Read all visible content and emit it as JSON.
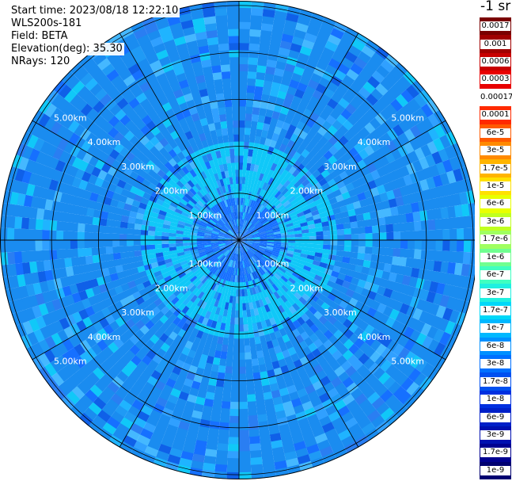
{
  "info": {
    "start_time": "Start time: 2023/08/18 12:22:10",
    "instrument": "WLS200s-181",
    "field": "Field: BETA",
    "elevation": "Elevation(deg): 35.30",
    "nrays": "NRays: 120"
  },
  "colorbar": {
    "title": "-1 sr",
    "labels": [
      "0.0017",
      "0.001",
      "0.0006",
      "0.0003",
      "0.00017",
      "0.0001",
      "6e-5",
      "3e-5",
      "1.7e-5",
      "1e-5",
      "6e-6",
      "3e-6",
      "1.7e-6",
      "1e-6",
      "6e-7",
      "3e-7",
      "1.7e-7",
      "1e-7",
      "6e-8",
      "3e-8",
      "1.7e-8",
      "1e-8",
      "6e-9",
      "3e-9",
      "1.7e-9",
      "1e-9"
    ],
    "colors": [
      "#7a0000",
      "#a00000",
      "#c80000",
      "#e80000",
      "#ffffff",
      "#ff2a00",
      "#ff5a00",
      "#ff8a00",
      "#ffb400",
      "#ffe000",
      "#e8ff00",
      "#c0ff20",
      "#a0ff60",
      "#70ff90",
      "#40ffc0",
      "#20f0e0",
      "#00d8f8",
      "#00b8ff",
      "#0090ff",
      "#0070ff",
      "#0050f0",
      "#0030e0",
      "#0020c8",
      "#0010b0",
      "#000090",
      "#000070"
    ]
  },
  "chart_data": {
    "type": "heatmap",
    "projection": "polar (PPI scan)",
    "field": "BETA",
    "nrays": 120,
    "range_rings_km": [
      1,
      2,
      3,
      4,
      5
    ],
    "max_range_km": 5.1,
    "azimuth_lines_deg": [
      0,
      30,
      60,
      90,
      120,
      150,
      180,
      210,
      240,
      270,
      300,
      330
    ],
    "ring_labels": [
      "1.00km",
      "2.00km",
      "3.00km",
      "4.00km",
      "5.00km"
    ],
    "value_range": [
      1e-09,
      0.0017
    ],
    "dominant_color_by_range_km": [
      {
        "range": [
          0,
          0.9
        ],
        "color": "#1670ff"
      },
      {
        "range": [
          0.9,
          2.1
        ],
        "color": "#10c8f8"
      },
      {
        "range": [
          2.1,
          5.1
        ],
        "color": "#1a8cf0"
      }
    ]
  }
}
